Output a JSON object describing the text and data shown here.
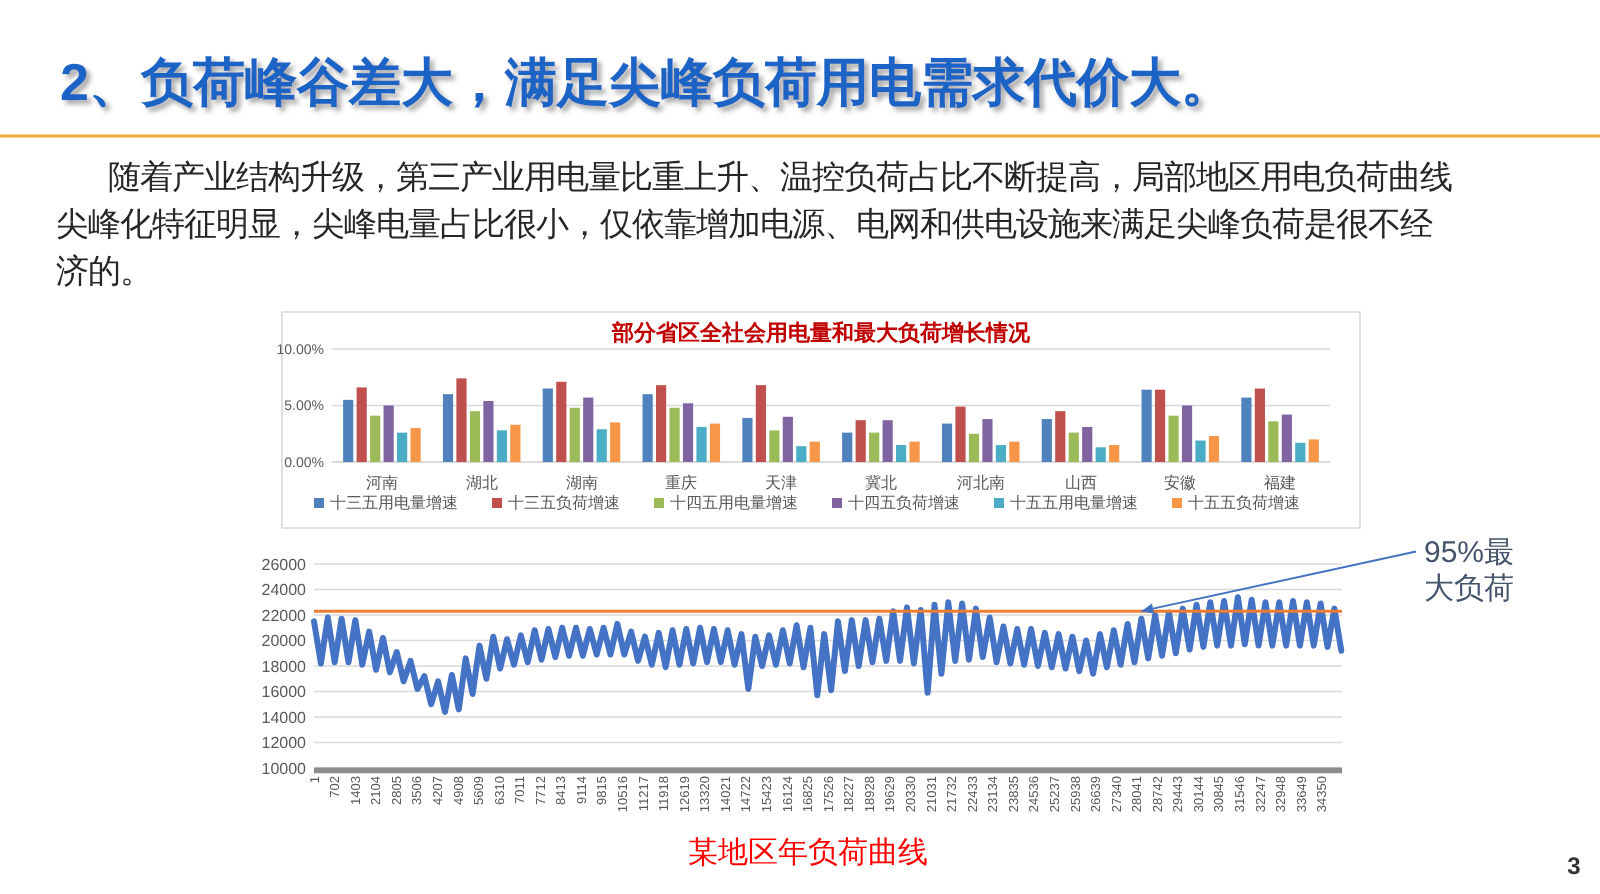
{
  "chart_data": [
    {
      "type": "bar",
      "title": "部分省区全社会用电量和最大负荷增长情况",
      "annotations": [
        "2、负荷峰谷差大，满足尖峰负荷用电需求代价大。",
        "随着产业结构升级，第三产业用电量比重上升、温控负荷占比不断提高，局部地区用电负荷曲线尖峰化特征明显，尖峰电量占比很小，仅依靠增加电源、电网和供电设施来满足尖峰负荷是很不经济的。"
      ],
      "categories": [
        "河南",
        "湖北",
        "湖南",
        "重庆",
        "天津",
        "冀北",
        "河北南",
        "山西",
        "安徽",
        "福建"
      ],
      "series": [
        {
          "name": "十三五用电量增速",
          "color": "#4f81bd",
          "values": [
            5.5,
            6.0,
            6.5,
            6.0,
            3.9,
            2.6,
            3.4,
            3.8,
            6.4,
            5.7
          ]
        },
        {
          "name": "十三五负荷增速",
          "color": "#c0504d",
          "values": [
            6.6,
            7.4,
            7.1,
            6.8,
            6.8,
            3.7,
            4.9,
            4.5,
            6.4,
            6.5
          ]
        },
        {
          "name": "十四五用电量增速",
          "color": "#9bbb59",
          "values": [
            4.1,
            4.5,
            4.8,
            4.8,
            2.8,
            2.6,
            2.5,
            2.6,
            4.1,
            3.6
          ]
        },
        {
          "name": "十四五负荷增速",
          "color": "#8064a2",
          "values": [
            5.0,
            5.4,
            5.7,
            5.2,
            4.0,
            3.7,
            3.8,
            3.1,
            5.0,
            4.2
          ]
        },
        {
          "name": "十五五用电量增速",
          "color": "#4bacc6",
          "values": [
            2.6,
            2.8,
            2.9,
            3.1,
            1.4,
            1.5,
            1.5,
            1.3,
            1.9,
            1.7
          ]
        },
        {
          "name": "十五五负荷增速",
          "color": "#f79646",
          "values": [
            3.0,
            3.3,
            3.5,
            3.4,
            1.8,
            1.8,
            1.8,
            1.5,
            2.3,
            2.0
          ]
        }
      ],
      "ylim": [
        0,
        10
      ],
      "yticks": [
        {
          "value": 0,
          "label": "0.00%"
        },
        {
          "value": 5,
          "label": "5.00%"
        },
        {
          "value": 10,
          "label": "10.00%"
        }
      ],
      "grid": "y",
      "legend": "bottom"
    },
    {
      "type": "line",
      "annotations": [
        {
          "text": "95%最大负荷",
          "x": 28200,
          "y": 22300
        },
        "某地区年负荷曲线",
        "3"
      ],
      "series": [
        {
          "color": "#4472c4",
          "x": [
            1,
            236,
            471,
            706,
            941,
            1176,
            1411,
            1646,
            1881,
            2116,
            2351,
            2586,
            2821,
            3056,
            3291,
            3526,
            3761,
            3996,
            4231,
            4466,
            4701,
            4936,
            5171,
            5406,
            5641,
            5876,
            6111,
            6346,
            6581,
            6816,
            7051,
            7286,
            7521,
            7756,
            7991,
            8226,
            8461,
            8696,
            8931,
            9166,
            9401,
            9636,
            9871,
            10106,
            10341,
            10576,
            10811,
            11046,
            11281,
            11516,
            11751,
            11986,
            12221,
            12456,
            12691,
            12926,
            13161,
            13396,
            13631,
            13866,
            14101,
            14336,
            14571,
            14806,
            15041,
            15276,
            15511,
            15746,
            15981,
            16216,
            16451,
            16686,
            16921,
            17156,
            17391,
            17626,
            17861,
            18096,
            18331,
            18566,
            18801,
            19036,
            19271,
            19506,
            19741,
            19976,
            20211,
            20446,
            20681,
            20916,
            21151,
            21386,
            21621,
            21856,
            22091,
            22326,
            22561,
            22796,
            23031,
            23266,
            23501,
            23736,
            23971,
            24206,
            24441,
            24676,
            24911,
            25146,
            25381,
            25616,
            25851,
            26086,
            26321,
            26556,
            26791,
            27026,
            27261,
            27496,
            27731,
            27966,
            28201,
            28436,
            28671,
            28906,
            29141,
            29376,
            29611,
            29846,
            30081,
            30316,
            30551,
            30786,
            31021,
            31256,
            31491,
            31726,
            31961,
            32196,
            32431,
            32666,
            32901,
            33136,
            33371,
            33606,
            33841,
            34076,
            34311,
            34546,
            34781,
            35016
          ],
          "values": [
            21500,
            18200,
            21800,
            18300,
            21700,
            18300,
            21600,
            18100,
            20700,
            17700,
            20200,
            17500,
            19100,
            16800,
            18400,
            16200,
            17200,
            15000,
            16800,
            14400,
            17300,
            14600,
            18600,
            15800,
            19600,
            17000,
            20300,
            17800,
            20100,
            18100,
            20400,
            18300,
            20800,
            18500,
            20900,
            18700,
            21000,
            18800,
            21000,
            18800,
            20900,
            18900,
            21000,
            18900,
            21300,
            18900,
            20700,
            18400,
            20300,
            18100,
            20600,
            17900,
            20800,
            18100,
            20900,
            18200,
            21000,
            18300,
            20900,
            18300,
            20800,
            18100,
            20500,
            16200,
            20300,
            18000,
            20400,
            18100,
            20800,
            18200,
            21200,
            17900,
            21000,
            15700,
            20500,
            16100,
            21500,
            17600,
            21600,
            18000,
            21600,
            18300,
            21700,
            18400,
            22300,
            18400,
            22600,
            18200,
            22400,
            15900,
            22800,
            17400,
            23000,
            18400,
            22900,
            18500,
            22500,
            18700,
            21800,
            18300,
            21100,
            18200,
            20900,
            18100,
            20900,
            18000,
            20600,
            17900,
            20500,
            17800,
            20300,
            17600,
            20000,
            17400,
            20500,
            17900,
            20800,
            18100,
            21300,
            18300,
            21700,
            18600,
            22000,
            18800,
            22200,
            19000,
            22500,
            19300,
            22800,
            19500,
            23000,
            19600,
            23100,
            19600,
            23400,
            19700,
            23200,
            19600,
            23000,
            19600,
            23000,
            19600,
            23100,
            19600,
            23000,
            19600,
            22900,
            19500,
            22500,
            19200
          ]
        }
      ],
      "xlim": [
        1,
        35040
      ],
      "xticks": [
        1,
        702,
        1403,
        2104,
        2805,
        3506,
        4207,
        4908,
        5609,
        6310,
        7011,
        7712,
        8413,
        9114,
        9815,
        10516,
        11217,
        11918,
        12619,
        13320,
        14021,
        14722,
        15423,
        16124,
        16825,
        17526,
        18227,
        18928,
        19629,
        20330,
        21031,
        21732,
        22433,
        23134,
        23835,
        24536,
        25237,
        25938,
        26639,
        27340,
        28041,
        28742,
        29443,
        30144,
        30845,
        31546,
        32247,
        32948,
        33649,
        34350
      ],
      "ylim": [
        10000,
        26000
      ],
      "yticks": [
        10000,
        12000,
        14000,
        16000,
        18000,
        20000,
        22000,
        24000,
        26000
      ],
      "grid": "y",
      "ref_lines": [
        {
          "axis": "y",
          "value": 22300,
          "color": "#ed7d31"
        }
      ]
    }
  ]
}
